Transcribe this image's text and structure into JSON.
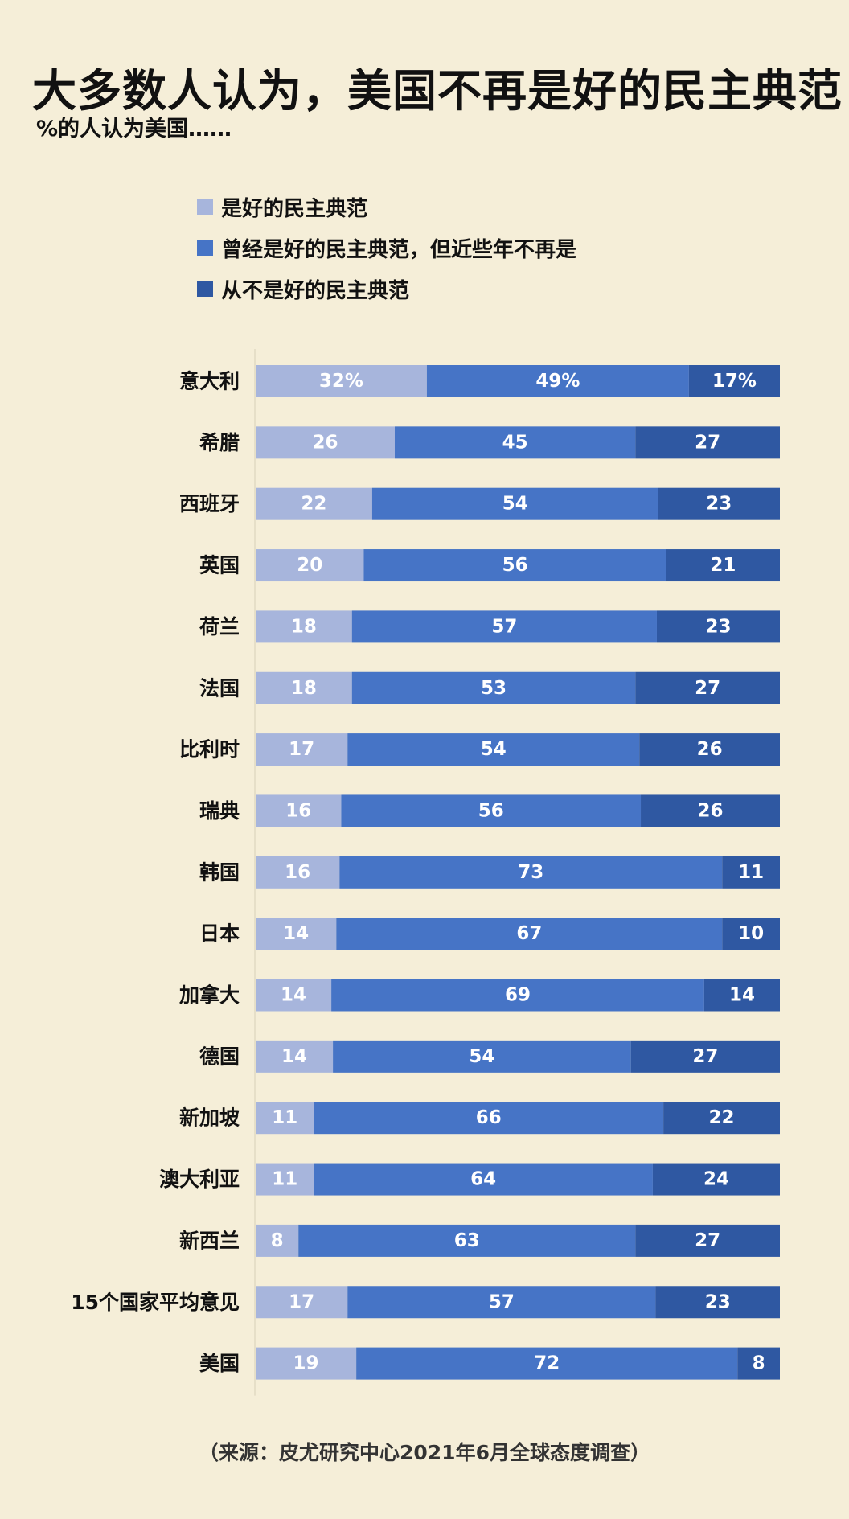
{
  "title": "大多数人认为，美国不再是好的民主典范",
  "subtitle": "%的人认为美国……",
  "source": "（来源：皮尤研究中心2021年6月全球态度调查）",
  "colors": {
    "background": "#f5eed8",
    "good_model": "#a7b5dc",
    "used_to_be": "#4674c6",
    "never_was": "#2f58a2"
  },
  "legend": [
    {
      "label": "是好的民主典范",
      "color": "#a7b5dc"
    },
    {
      "label": "曾经是好的民主典范，但近些年不再是",
      "color": "#4674c6"
    },
    {
      "label": "从不是好的民主典范",
      "color": "#2f58a2"
    }
  ],
  "chart_data": {
    "type": "bar",
    "orientation": "horizontal",
    "stacked": true,
    "categories": [
      "意大利",
      "希腊",
      "西班牙",
      "英国",
      "荷兰",
      "法国",
      "比利时",
      "瑞典",
      "韩国",
      "日本",
      "加拿大",
      "德国",
      "新加坡",
      "澳大利亚",
      "新西兰",
      "15个国家平均意见",
      "美国"
    ],
    "series": [
      {
        "name": "是好的民主典范",
        "values": [
          32,
          26,
          22,
          20,
          18,
          18,
          17,
          16,
          16,
          14,
          14,
          14,
          11,
          11,
          8,
          17,
          19
        ]
      },
      {
        "name": "曾经是好的民主典范，但近些年不再是",
        "values": [
          49,
          45,
          54,
          56,
          57,
          53,
          54,
          56,
          73,
          67,
          69,
          54,
          66,
          64,
          63,
          57,
          72
        ]
      },
      {
        "name": "从不是好的民主典范",
        "values": [
          17,
          27,
          23,
          21,
          23,
          27,
          26,
          26,
          11,
          10,
          14,
          27,
          22,
          24,
          27,
          23,
          8
        ]
      }
    ],
    "data_labels": [
      [
        "32%",
        "26",
        "22",
        "20",
        "18",
        "18",
        "17",
        "16",
        "16",
        "14",
        "14",
        "14",
        "11",
        "11",
        "8",
        "17",
        "19"
      ],
      [
        "49%",
        "45",
        "54",
        "56",
        "57",
        "53",
        "54",
        "56",
        "73",
        "67",
        "69",
        "54",
        "66",
        "64",
        "63",
        "57",
        "72"
      ],
      [
        "17%",
        "27",
        "23",
        "21",
        "23",
        "27",
        "26",
        "26",
        "11",
        "10",
        "14",
        "27",
        "22",
        "24",
        "27",
        "23",
        "8"
      ]
    ],
    "xlim": [
      0,
      100
    ],
    "legend_position": "top-left",
    "grid": false
  }
}
